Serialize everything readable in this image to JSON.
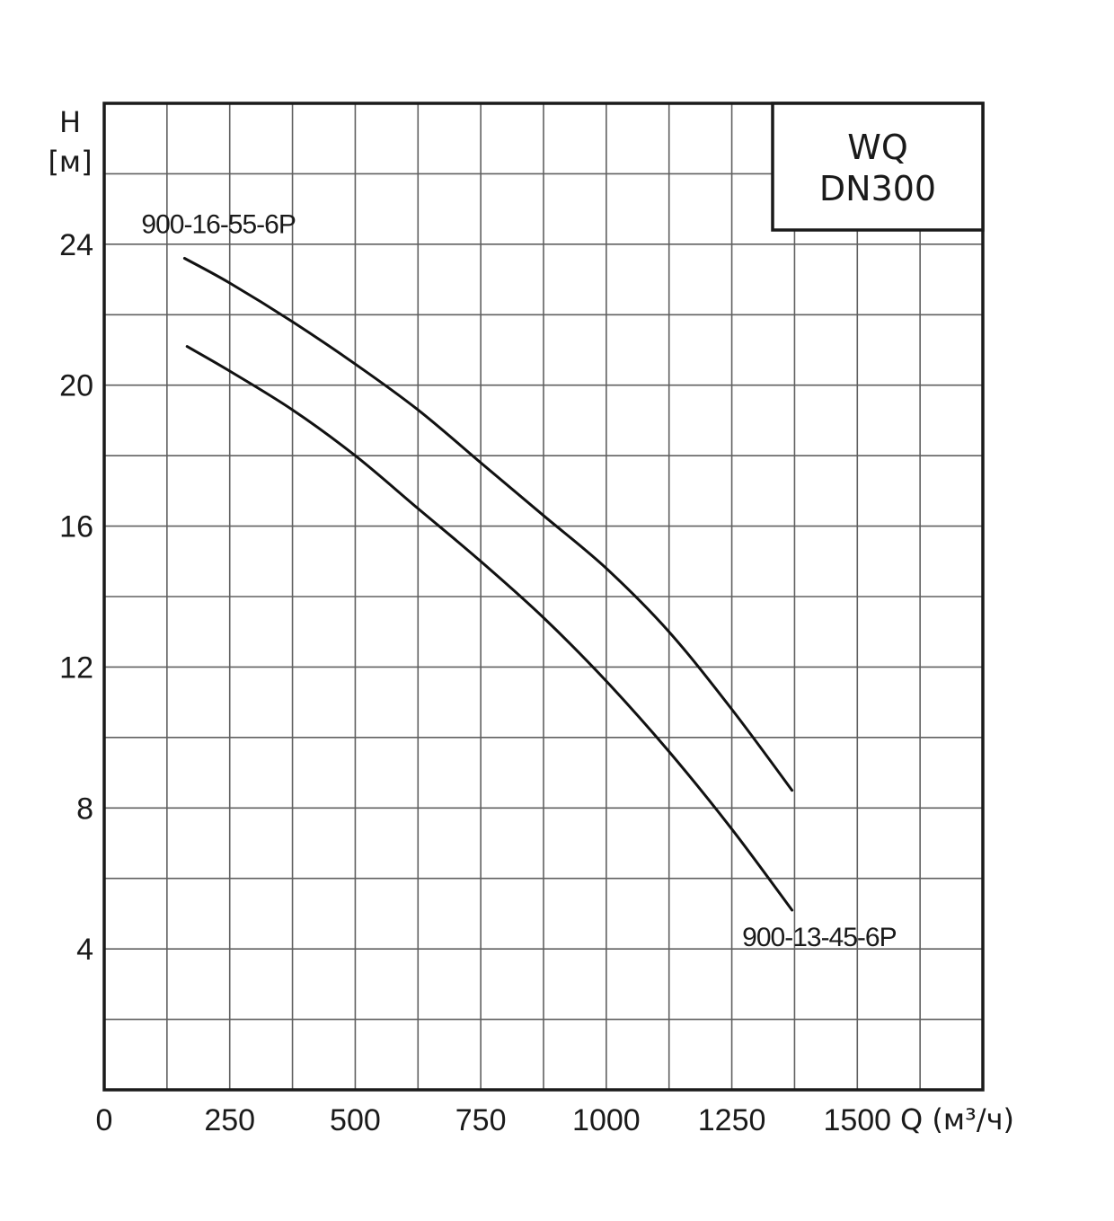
{
  "chart_data": {
    "type": "line",
    "title_lines": [
      "WQ",
      "DN300"
    ],
    "ylabel_lines": [
      "H",
      "[м]"
    ],
    "xlabel": "Q (м³/ч)",
    "xlim": [
      0,
      1750
    ],
    "ylim": [
      0,
      28
    ],
    "x_ticks": [
      0,
      250,
      500,
      750,
      1000,
      1250,
      1500
    ],
    "x_tick_labels": [
      "0",
      "250",
      "500",
      "750",
      "1000",
      "1250",
      "1500"
    ],
    "y_ticks": [
      4,
      8,
      12,
      16,
      20,
      24
    ],
    "y_tick_labels": [
      "4",
      "8",
      "12",
      "16",
      "20",
      "24"
    ],
    "grid": true,
    "grid_minor_x": 125,
    "grid_minor_y": 2,
    "series": [
      {
        "name": "900-16-55-6P",
        "x": [
          160,
          250,
          375,
          500,
          625,
          750,
          875,
          1000,
          1125,
          1250,
          1370
        ],
        "y": [
          23.6,
          22.9,
          21.8,
          20.6,
          19.3,
          17.8,
          16.3,
          14.8,
          13.0,
          10.8,
          8.5
        ]
      },
      {
        "name": "900-13-45-6P",
        "x": [
          165,
          250,
          375,
          500,
          625,
          750,
          875,
          1000,
          1125,
          1250,
          1370
        ],
        "y": [
          21.1,
          20.4,
          19.3,
          18.0,
          16.5,
          15.0,
          13.4,
          11.6,
          9.6,
          7.4,
          5.1
        ]
      }
    ]
  }
}
